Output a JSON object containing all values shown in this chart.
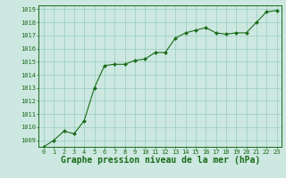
{
  "x": [
    0,
    1,
    2,
    3,
    4,
    5,
    6,
    7,
    8,
    9,
    10,
    11,
    12,
    13,
    14,
    15,
    16,
    17,
    18,
    19,
    20,
    21,
    22,
    23
  ],
  "y": [
    1008.5,
    1009.0,
    1009.7,
    1009.5,
    1010.5,
    1013.0,
    1014.7,
    1014.8,
    1014.8,
    1015.1,
    1015.2,
    1015.7,
    1015.7,
    1016.8,
    1017.2,
    1017.4,
    1017.6,
    1017.2,
    1017.1,
    1017.2,
    1017.2,
    1018.0,
    1018.8,
    1018.9
  ],
  "ylim": [
    1008.5,
    1019.3
  ],
  "xlim": [
    -0.5,
    23.5
  ],
  "yticks": [
    1009,
    1010,
    1011,
    1012,
    1013,
    1014,
    1015,
    1016,
    1017,
    1018,
    1019
  ],
  "xticks": [
    0,
    1,
    2,
    3,
    4,
    5,
    6,
    7,
    8,
    9,
    10,
    11,
    12,
    13,
    14,
    15,
    16,
    17,
    18,
    19,
    20,
    21,
    22,
    23
  ],
  "line_color": "#1a6b1a",
  "marker_color": "#1a6b1a",
  "bg_color": "#cce8e0",
  "grid_color": "#99ccc0",
  "xlabel": "Graphe pression niveau de la mer (hPa)",
  "xlabel_color": "#1a6b1a",
  "tick_color": "#1a6b1a",
  "tick_fontsize": 5.0,
  "xlabel_fontsize": 7.0,
  "spine_color": "#1a6b1a"
}
